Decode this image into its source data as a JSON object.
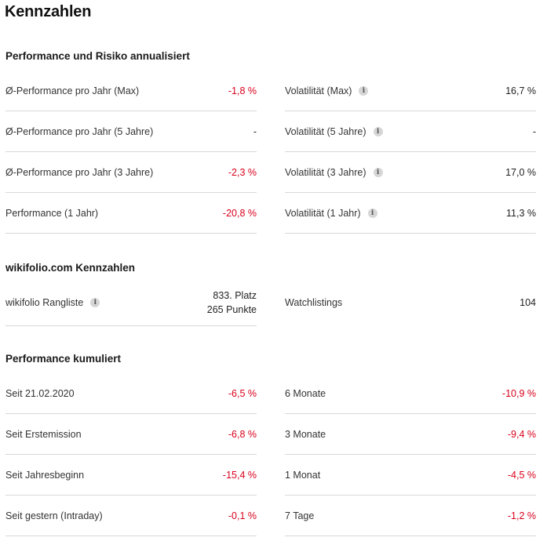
{
  "page": {
    "title": "Kennzahlen"
  },
  "performance_risk": {
    "title": "Performance und Risiko annualisiert",
    "left": [
      {
        "label": "Ø-Performance pro Jahr (Max)",
        "value": "-1,8 %"
      },
      {
        "label": "Ø-Performance pro Jahr (5 Jahre)",
        "value": "-"
      },
      {
        "label": "Ø-Performance pro Jahr (3 Jahre)",
        "value": "-2,3 %"
      },
      {
        "label": "Performance (1 Jahr)",
        "value": "-20,8 %"
      }
    ],
    "right": [
      {
        "label": "Volatilität (Max)",
        "value": "16,7 %"
      },
      {
        "label": "Volatilität (5 Jahre)",
        "value": "-"
      },
      {
        "label": "Volatilität (3 Jahre)",
        "value": "17,0 %"
      },
      {
        "label": "Volatilität (1 Jahr)",
        "value": "11,3 %"
      }
    ]
  },
  "wikifolio": {
    "title": "wikifolio.com Kennzahlen",
    "ranking": {
      "label": "wikifolio Rangliste",
      "place": "833. Platz",
      "points": "265 Punkte"
    },
    "watchlistings": {
      "label": "Watchlistings",
      "value": "104"
    }
  },
  "cumulative": {
    "title": "Performance kumuliert",
    "left": [
      {
        "label": "Seit 21.02.2020",
        "value": "-6,5 %"
      },
      {
        "label": "Seit Erstemission",
        "value": "-6,8 %"
      },
      {
        "label": "Seit Jahresbeginn",
        "value": "-15,4 %"
      },
      {
        "label": "Seit gestern (Intraday)",
        "value": "-0,1 %"
      }
    ],
    "right": [
      {
        "label": "6 Monate",
        "value": "-10,9 %"
      },
      {
        "label": "3 Monate",
        "value": "-9,4 %"
      },
      {
        "label": "1 Monat",
        "value": "-4,5 %"
      },
      {
        "label": "7 Tage",
        "value": "-1,2 %"
      }
    ]
  },
  "icons": {
    "info": "i"
  },
  "colors": {
    "negative": "#d9001b",
    "divider": "#d8d8d8"
  }
}
